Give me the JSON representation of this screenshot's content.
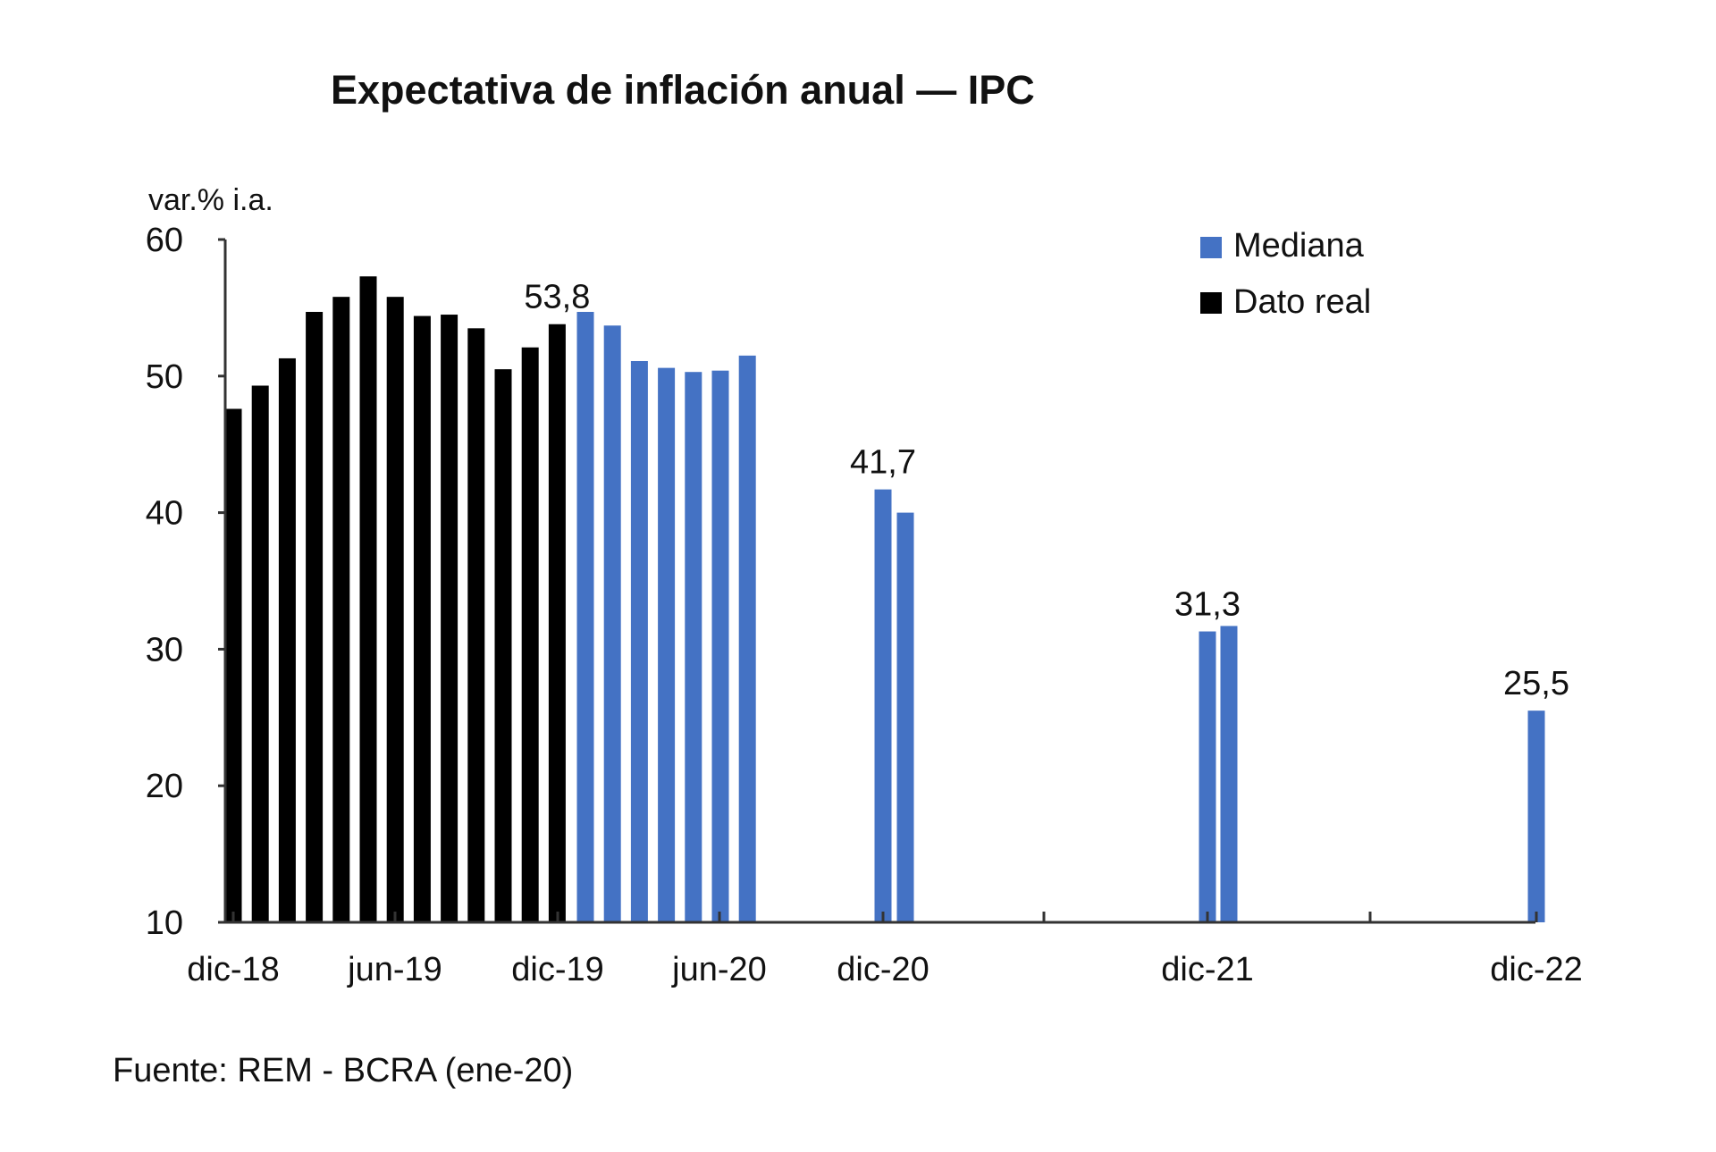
{
  "chart_data": {
    "type": "bar",
    "title": "Expectativa de inflación anual — IPC",
    "ylabel": "var.% i.a.",
    "ylim": [
      10,
      60
    ],
    "yticks": [
      "10",
      "20",
      "30",
      "40",
      "50",
      "60"
    ],
    "xtick_labels": [
      "dic-18",
      "jun-19",
      "dic-19",
      "jun-20",
      "dic-20",
      "dic-21",
      "dic-22"
    ],
    "legend": {
      "position": "top-right",
      "entries": [
        {
          "name": "Mediana",
          "color": "#4472C4"
        },
        {
          "name": "Dato real",
          "color": "#000000"
        }
      ]
    },
    "series": [
      {
        "name": "Dato real",
        "color": "#000000",
        "points": [
          {
            "x": "dic-18",
            "value": 47.6
          },
          {
            "x": "ene-19",
            "value": 49.3
          },
          {
            "x": "feb-19",
            "value": 51.3
          },
          {
            "x": "mar-19",
            "value": 54.7
          },
          {
            "x": "abr-19",
            "value": 55.8
          },
          {
            "x": "may-19",
            "value": 57.3
          },
          {
            "x": "jun-19",
            "value": 55.8
          },
          {
            "x": "jul-19",
            "value": 54.4
          },
          {
            "x": "ago-19",
            "value": 54.5
          },
          {
            "x": "sep-19",
            "value": 53.5
          },
          {
            "x": "oct-19",
            "value": 50.5
          },
          {
            "x": "nov-19",
            "value": 52.1
          },
          {
            "x": "dic-19",
            "value": 53.8,
            "label": "53,8"
          }
        ]
      },
      {
        "name": "Mediana",
        "color": "#4472C4",
        "points": [
          {
            "x": "ene-20",
            "value": 54.7
          },
          {
            "x": "feb-20",
            "value": 53.7
          },
          {
            "x": "mar-20",
            "value": 51.1
          },
          {
            "x": "abr-20",
            "value": 50.6
          },
          {
            "x": "may-20",
            "value": 50.3
          },
          {
            "x": "jun-20",
            "value": 50.4
          },
          {
            "x": "jul-20",
            "value": 51.5
          },
          {
            "x": "dic-20 (a)",
            "value": 41.7,
            "label": "41,7"
          },
          {
            "x": "dic-20 (b)",
            "value": 40.0
          },
          {
            "x": "dic-21 (a)",
            "value": 31.3,
            "label": "31,3"
          },
          {
            "x": "dic-21 (b)",
            "value": 31.7
          },
          {
            "x": "dic-22",
            "value": 25.5,
            "label": "25,5"
          }
        ]
      }
    ]
  },
  "source": "Fuente: REM - BCRA (ene-20)"
}
